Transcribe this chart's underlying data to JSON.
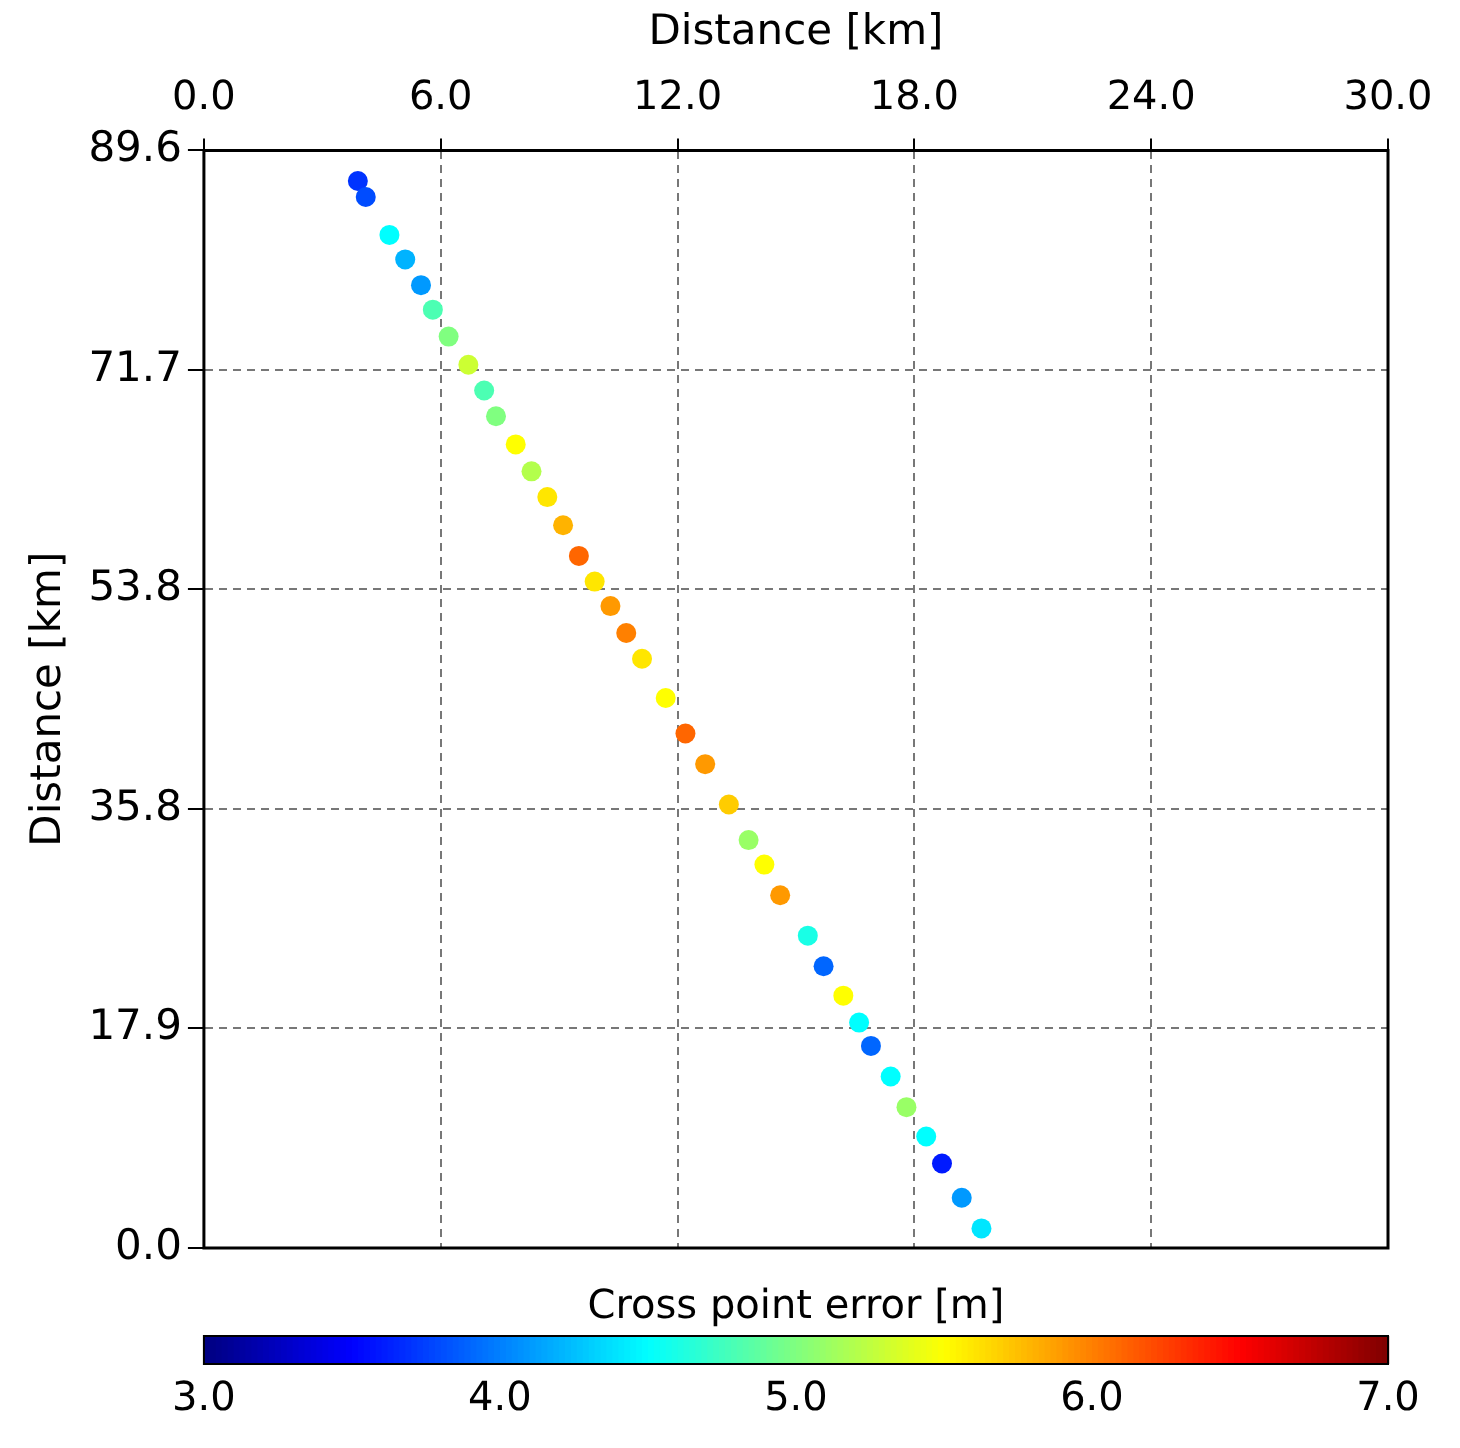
{
  "chart_data": {
    "type": "scatter",
    "xlabel": "Distance [km]",
    "ylabel": "Distance [km]",
    "clabel": "Cross point error [m]",
    "xlim": [
      0,
      30
    ],
    "xticks": [
      {
        "value": 0,
        "label": "0.0"
      },
      {
        "value": 6,
        "label": "6.0"
      },
      {
        "value": 12,
        "label": "12.0"
      },
      {
        "value": 18,
        "label": "18.0"
      },
      {
        "value": 24,
        "label": "24.0"
      },
      {
        "value": 30,
        "label": "30.0"
      }
    ],
    "ylim": [
      0,
      89.6
    ],
    "yticks": [
      {
        "value": 0,
        "label": "0.0"
      },
      {
        "value": 17.92,
        "label": "17.9"
      },
      {
        "value": 35.84,
        "label": "35.8"
      },
      {
        "value": 53.76,
        "label": "53.8"
      },
      {
        "value": 71.68,
        "label": "71.7"
      },
      {
        "value": 89.6,
        "label": "89.6"
      }
    ],
    "clim": [
      3,
      7
    ],
    "cticks": [
      {
        "value": 3,
        "label": "3.0"
      },
      {
        "value": 4,
        "label": "4.0"
      },
      {
        "value": 5,
        "label": "5.0"
      },
      {
        "value": 6,
        "label": "6.0"
      },
      {
        "value": 7,
        "label": "7.0"
      }
    ],
    "grid": true,
    "marker": "circle",
    "x": [
      3.9,
      4.1,
      4.7,
      5.1,
      5.5,
      5.8,
      6.2,
      6.7,
      7.1,
      7.4,
      7.9,
      8.3,
      8.7,
      9.1,
      9.5,
      9.9,
      10.3,
      10.7,
      11.1,
      11.7,
      12.2,
      12.7,
      13.3,
      13.8,
      14.2,
      14.6,
      15.3,
      15.7,
      16.2,
      16.6,
      16.9,
      17.4,
      17.8,
      18.3,
      18.7,
      19.2,
      19.7
    ],
    "values": [
      87.1,
      85.8,
      82.7,
      80.7,
      78.6,
      76.6,
      74.4,
      72.1,
      70.0,
      67.9,
      65.6,
      63.4,
      61.3,
      59.0,
      56.5,
      54.4,
      52.4,
      50.2,
      48.1,
      44.9,
      42.0,
      39.5,
      36.2,
      33.3,
      31.3,
      28.8,
      25.5,
      23.0,
      20.6,
      18.4,
      16.5,
      14.0,
      11.5,
      9.1,
      6.9,
      4.1,
      1.6
    ],
    "cvalues": [
      3.7,
      3.8,
      4.5,
      4.2,
      4.1,
      4.8,
      5.0,
      5.3,
      4.8,
      5.0,
      5.5,
      5.2,
      5.6,
      5.8,
      6.1,
      5.6,
      5.9,
      6.0,
      5.6,
      5.5,
      6.1,
      5.9,
      5.7,
      5.1,
      5.5,
      5.9,
      4.6,
      3.9,
      5.5,
      4.5,
      3.9,
      4.5,
      5.1,
      4.5,
      3.6,
      4.1,
      4.4
    ]
  }
}
